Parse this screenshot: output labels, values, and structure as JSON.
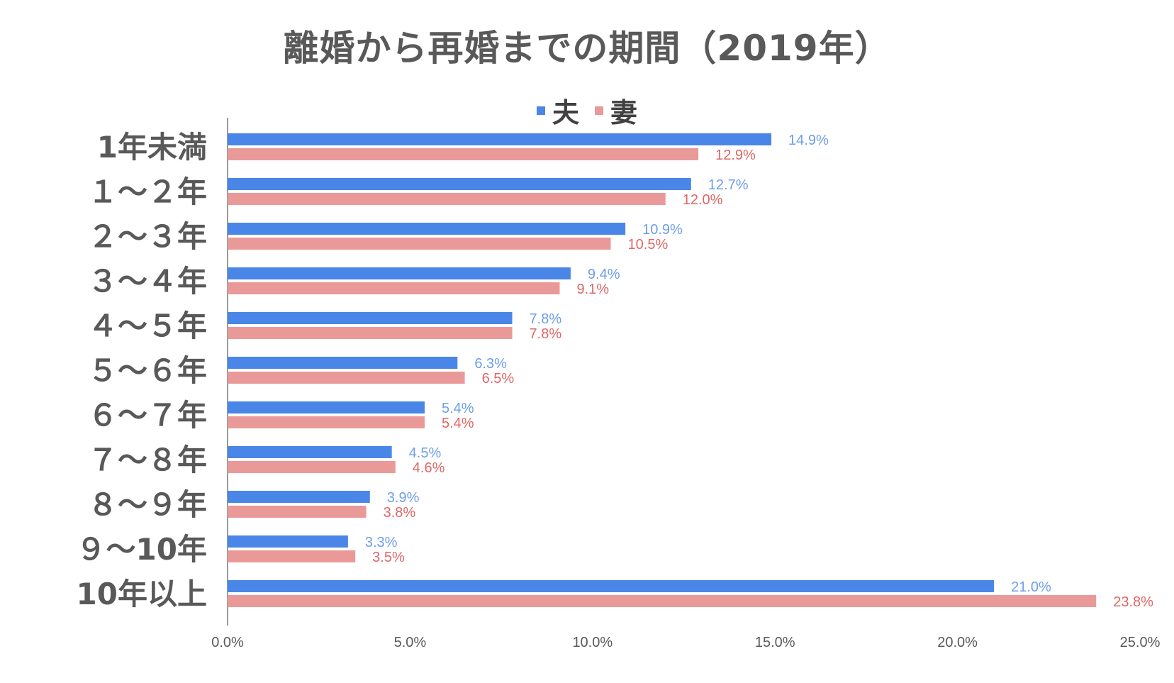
{
  "chart_data": {
    "type": "bar",
    "orientation": "horizontal",
    "title": "離婚から再婚までの期間（2019年）",
    "categories": [
      "1年未満",
      "１～２年",
      "２～３年",
      "３～４年",
      "４～５年",
      "５～６年",
      "６～７年",
      "７～８年",
      "８～９年",
      "９～10年",
      "10年以上"
    ],
    "series": [
      {
        "name": "夫",
        "color": "#4a86e8",
        "label_color": "#6d9eeb",
        "values": [
          14.9,
          12.7,
          10.9,
          9.4,
          7.8,
          6.3,
          5.4,
          4.5,
          3.9,
          3.3,
          21.0
        ],
        "labels": [
          "14.9%",
          "12.7%",
          "10.9%",
          "9.4%",
          "7.8%",
          "6.3%",
          "5.4%",
          "4.5%",
          "3.9%",
          "3.3%",
          "21.0%"
        ]
      },
      {
        "name": "妻",
        "color": "#ea9999",
        "label_color": "#e06666",
        "values": [
          12.9,
          12.0,
          10.5,
          9.1,
          7.8,
          6.5,
          5.4,
          4.6,
          3.8,
          3.5,
          23.8
        ],
        "labels": [
          "12.9%",
          "12.0%",
          "10.5%",
          "9.1%",
          "7.8%",
          "6.5%",
          "5.4%",
          "4.6%",
          "3.8%",
          "3.5%",
          "23.8%"
        ]
      }
    ],
    "x_ticks": [
      0,
      5,
      10,
      15,
      20,
      25
    ],
    "x_tick_labels": [
      "0.0%",
      "5.0%",
      "10.0%",
      "15.0%",
      "20.0%",
      "25.0%"
    ],
    "xlim": [
      0,
      25
    ],
    "xlabel": "",
    "ylabel": "",
    "grid": false,
    "legend_position": "top-center"
  }
}
